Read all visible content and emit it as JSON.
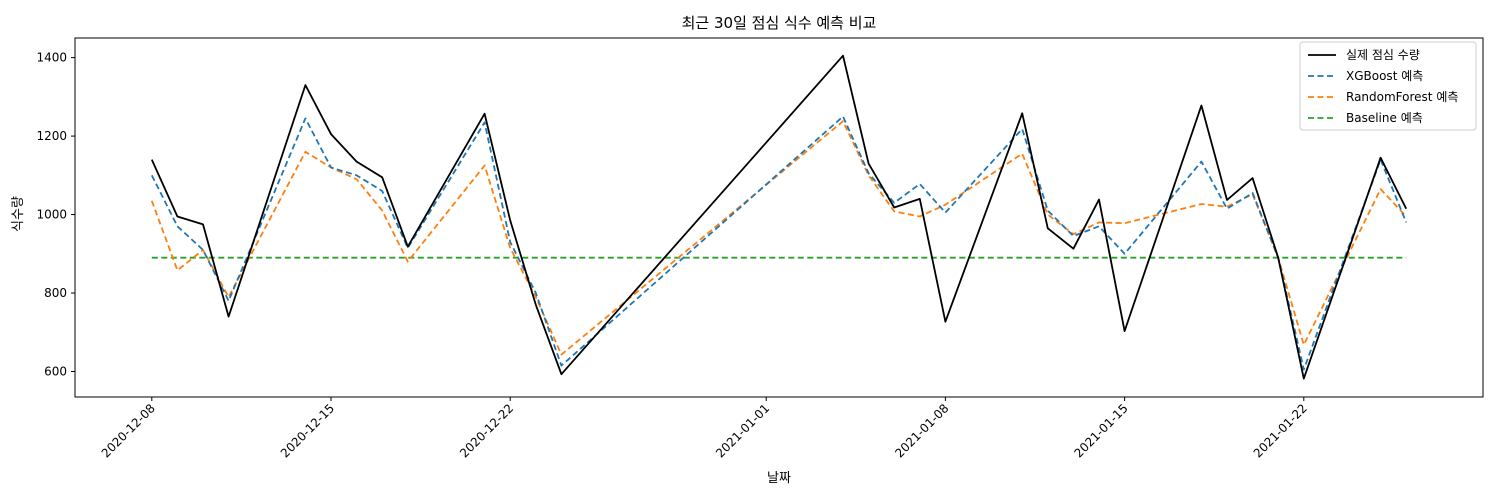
{
  "chart_data": {
    "type": "line",
    "title": "최근 30일 점심 식수 예측 비교",
    "xlabel": "날짜",
    "ylabel": "식수량",
    "xlim": [
      "2020-12-05",
      "2021-01-29"
    ],
    "ylim": [
      535,
      1450
    ],
    "x_ticks": [
      "2020-12-08",
      "2020-12-15",
      "2020-12-22",
      "2021-01-01",
      "2021-01-08",
      "2021-01-15",
      "2021-01-22"
    ],
    "y_ticks": [
      600,
      800,
      1000,
      1200,
      1400
    ],
    "legend_position": "top-right",
    "grid": false,
    "x": [
      "2020-12-08",
      "2020-12-09",
      "2020-12-10",
      "2020-12-11",
      "2020-12-14",
      "2020-12-15",
      "2020-12-16",
      "2020-12-17",
      "2020-12-18",
      "2020-12-21",
      "2020-12-22",
      "2020-12-23",
      "2020-12-24",
      "2021-01-04",
      "2021-01-05",
      "2021-01-06",
      "2021-01-07",
      "2021-01-08",
      "2021-01-11",
      "2021-01-12",
      "2021-01-13",
      "2021-01-14",
      "2021-01-15",
      "2021-01-18",
      "2021-01-19",
      "2021-01-20",
      "2021-01-21",
      "2021-01-22",
      "2021-01-25",
      "2021-01-26"
    ],
    "series": [
      {
        "name": "실제 점심 수량",
        "color": "#000000",
        "dash": "solid",
        "values": [
          1140,
          995,
          975,
          740,
          1330,
          1205,
          1135,
          1095,
          918,
          1257,
          985,
          770,
          593,
          1405,
          1130,
          1018,
          1040,
          727,
          1258,
          965,
          913,
          1038,
          703,
          1278,
          1037,
          1093,
          890,
          582,
          1145,
          1015
        ]
      },
      {
        "name": "XGBoost 예측",
        "color": "#1f77b4",
        "dash": "dashed",
        "values": [
          1100,
          970,
          910,
          780,
          1245,
          1120,
          1100,
          1060,
          915,
          1235,
          930,
          800,
          615,
          1250,
          1105,
          1030,
          1078,
          1005,
          1218,
          1010,
          945,
          970,
          900,
          1135,
          1015,
          1055,
          890,
          605,
          1140,
          980
        ]
      },
      {
        "name": "RandomForest 예측",
        "color": "#ff7f0e",
        "dash": "dashed",
        "values": [
          1035,
          858,
          910,
          790,
          1160,
          1120,
          1090,
          1010,
          880,
          1125,
          915,
          790,
          643,
          1238,
          1100,
          1008,
          995,
          1025,
          1155,
          1000,
          950,
          980,
          978,
          1027,
          1020,
          1052,
          890,
          668,
          1065,
          995
        ]
      },
      {
        "name": "Baseline 예측",
        "color": "#2ca02c",
        "dash": "dashed",
        "values": [
          890,
          890,
          890,
          890,
          890,
          890,
          890,
          890,
          890,
          890,
          890,
          890,
          890,
          890,
          890,
          890,
          890,
          890,
          890,
          890,
          890,
          890,
          890,
          890,
          890,
          890,
          890,
          890,
          890,
          890
        ]
      }
    ]
  }
}
